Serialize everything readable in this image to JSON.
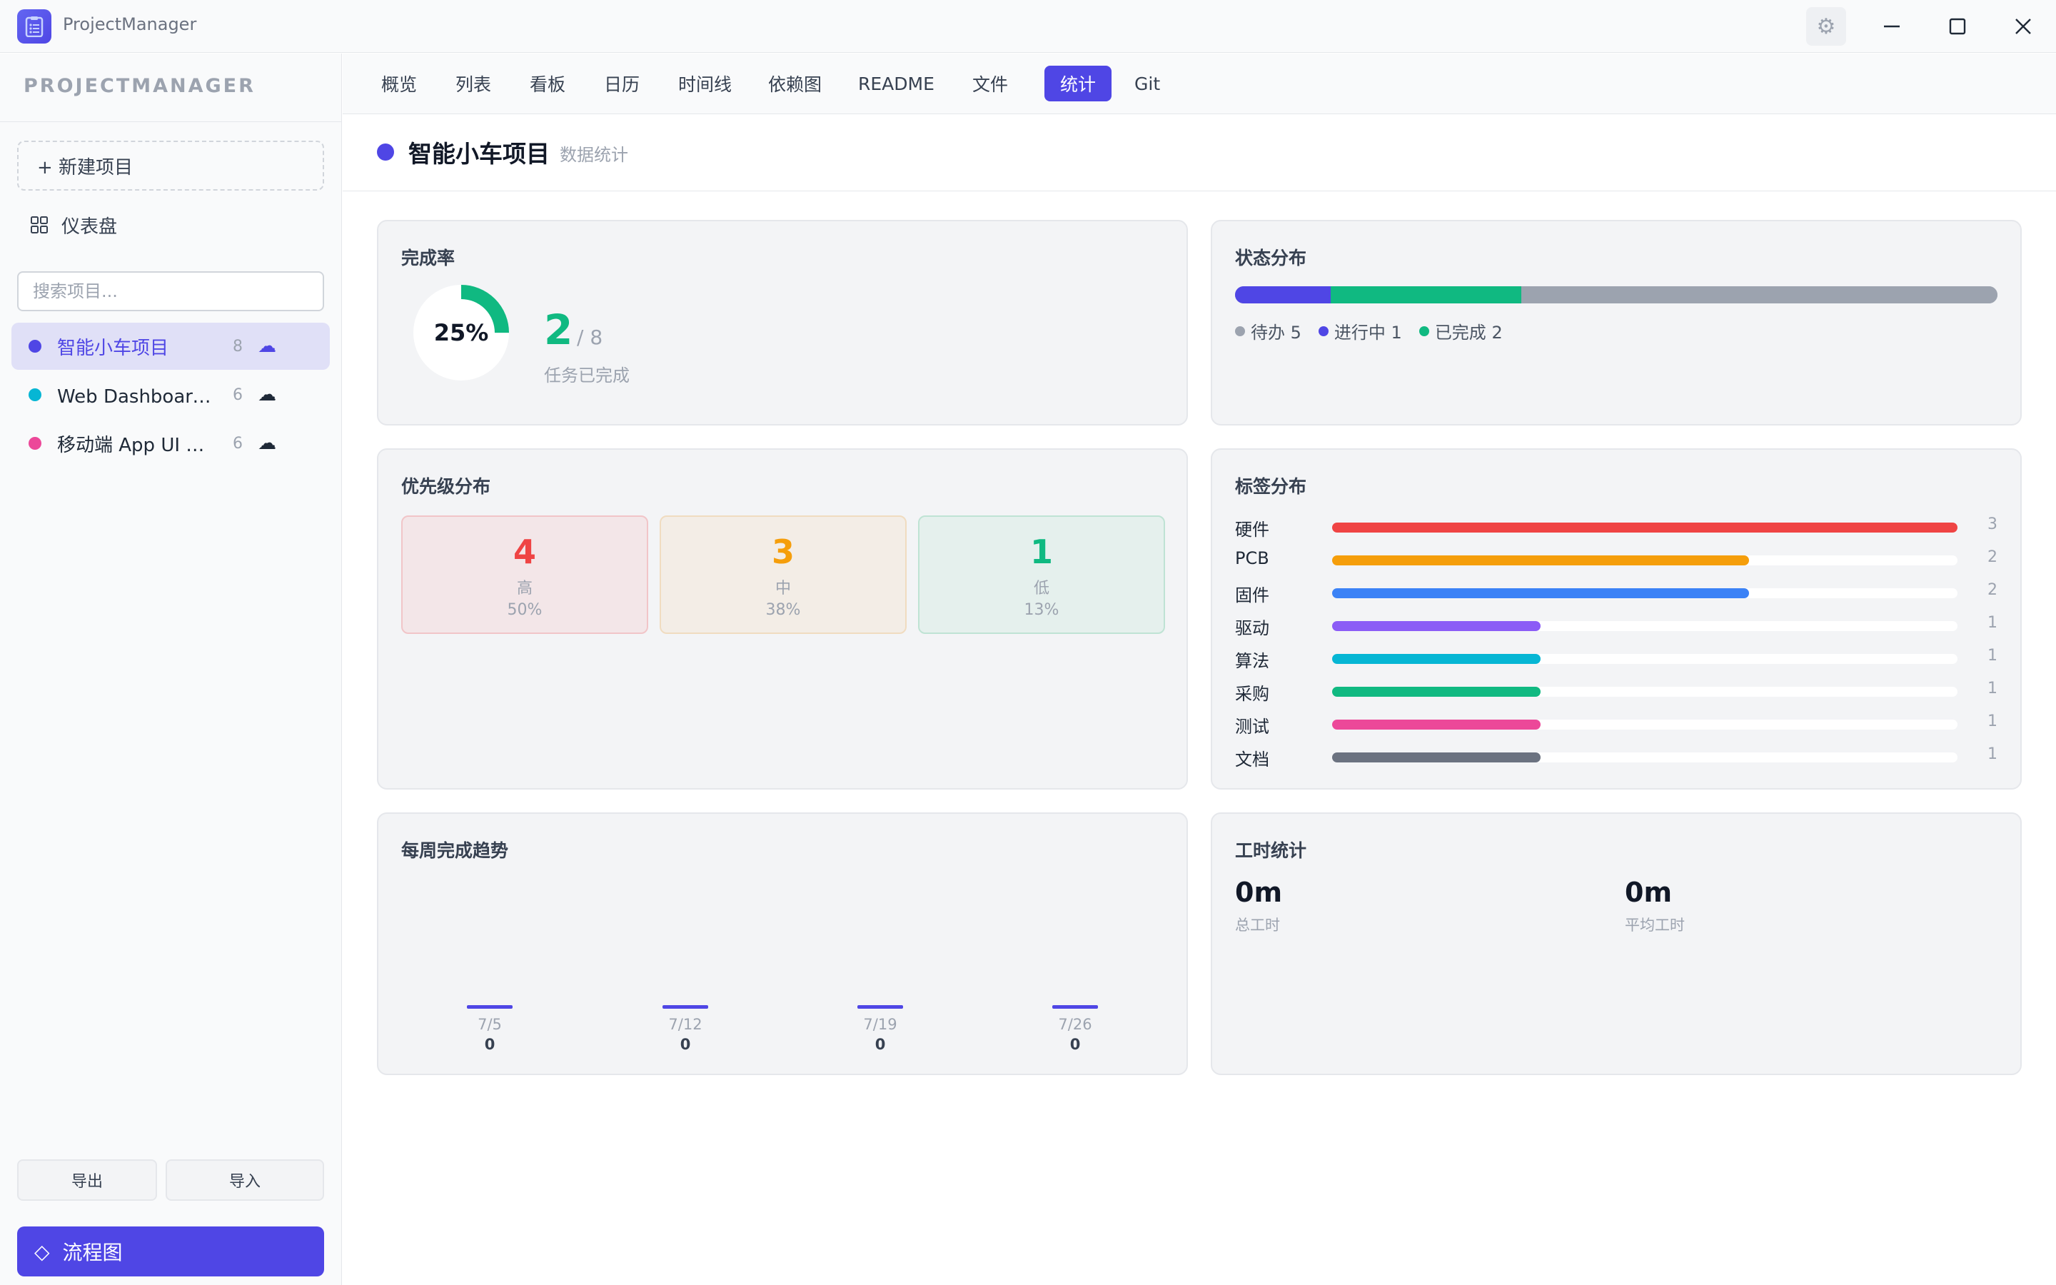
{
  "window": {
    "title": "ProjectManager"
  },
  "sidebar": {
    "brand": "PROJECTMANAGER",
    "new_project": "+ 新建项目",
    "dashboard": "仪表盘",
    "search_placeholder": "搜索项目...",
    "projects": [
      {
        "name": "智能小车项目",
        "count": "8",
        "color": "#4f46e5",
        "active": true
      },
      {
        "name": "Web Dashboard 重构",
        "count": "6",
        "color": "#06b6d4",
        "active": false
      },
      {
        "name": "移动端 App UI 设计",
        "count": "6",
        "color": "#ec4899",
        "active": false
      }
    ],
    "export_label": "导出",
    "import_label": "导入",
    "flowchart_label": "流程图"
  },
  "tabs": [
    {
      "label": "概览"
    },
    {
      "label": "列表"
    },
    {
      "label": "看板"
    },
    {
      "label": "日历"
    },
    {
      "label": "时间线"
    },
    {
      "label": "依赖图"
    },
    {
      "label": "README"
    },
    {
      "label": "文件"
    },
    {
      "label": "统计",
      "active": true
    },
    {
      "label": "Git"
    }
  ],
  "project": {
    "title": "智能小车项目",
    "subtitle": "数据统计",
    "color": "#4f46e5"
  },
  "completion": {
    "title": "完成率",
    "percent_label": "25%",
    "percent": 25,
    "done": "2",
    "total": "/ 8",
    "label": "任务已完成"
  },
  "status": {
    "title": "状态分布",
    "segments": [
      {
        "name": "进行中",
        "value": 1,
        "color": "#4f46e5"
      },
      {
        "name": "已完成",
        "value": 2,
        "color": "#10b981"
      },
      {
        "name": "待办",
        "value": 5,
        "color": "#9ca3af"
      }
    ],
    "legend": [
      {
        "text": "待办 5",
        "color": "#9ca3af"
      },
      {
        "text": "进行中 1",
        "color": "#4f46e5"
      },
      {
        "text": "已完成 2",
        "color": "#10b981"
      }
    ]
  },
  "priority": {
    "title": "优先级分布",
    "items": [
      {
        "count": "4",
        "label": "高",
        "percent": "50%",
        "color": "#ef4444",
        "bg": "#f3e6e8",
        "border": "#f1c5c8"
      },
      {
        "count": "3",
        "label": "中",
        "percent": "38%",
        "color": "#f59e0b",
        "bg": "#f3ede6",
        "border": "#f0dcc0"
      },
      {
        "count": "1",
        "label": "低",
        "percent": "13%",
        "color": "#10b981",
        "bg": "#e5f0ed",
        "border": "#bfe3d4"
      }
    ]
  },
  "tags": {
    "title": "标签分布",
    "max": 3,
    "items": [
      {
        "name": "硬件",
        "count": 3,
        "color": "#ef4444"
      },
      {
        "name": "PCB",
        "count": 2,
        "color": "#f59e0b"
      },
      {
        "name": "固件",
        "count": 2,
        "color": "#3b82f6"
      },
      {
        "name": "驱动",
        "count": 1,
        "color": "#8b5cf6"
      },
      {
        "name": "算法",
        "count": 1,
        "color": "#06b6d4"
      },
      {
        "name": "采购",
        "count": 1,
        "color": "#10b981"
      },
      {
        "name": "测试",
        "count": 1,
        "color": "#ec4899"
      },
      {
        "name": "文档",
        "count": 1,
        "color": "#6b7280"
      }
    ]
  },
  "weekly": {
    "title": "每周完成趋势",
    "weeks": [
      {
        "date": "7/5",
        "value": "0"
      },
      {
        "date": "7/12",
        "value": "0"
      },
      {
        "date": "7/19",
        "value": "0"
      },
      {
        "date": "7/26",
        "value": "0"
      }
    ]
  },
  "hours": {
    "title": "工时统计",
    "total_value": "0m",
    "total_label": "总工时",
    "avg_value": "0m",
    "avg_label": "平均工时"
  }
}
